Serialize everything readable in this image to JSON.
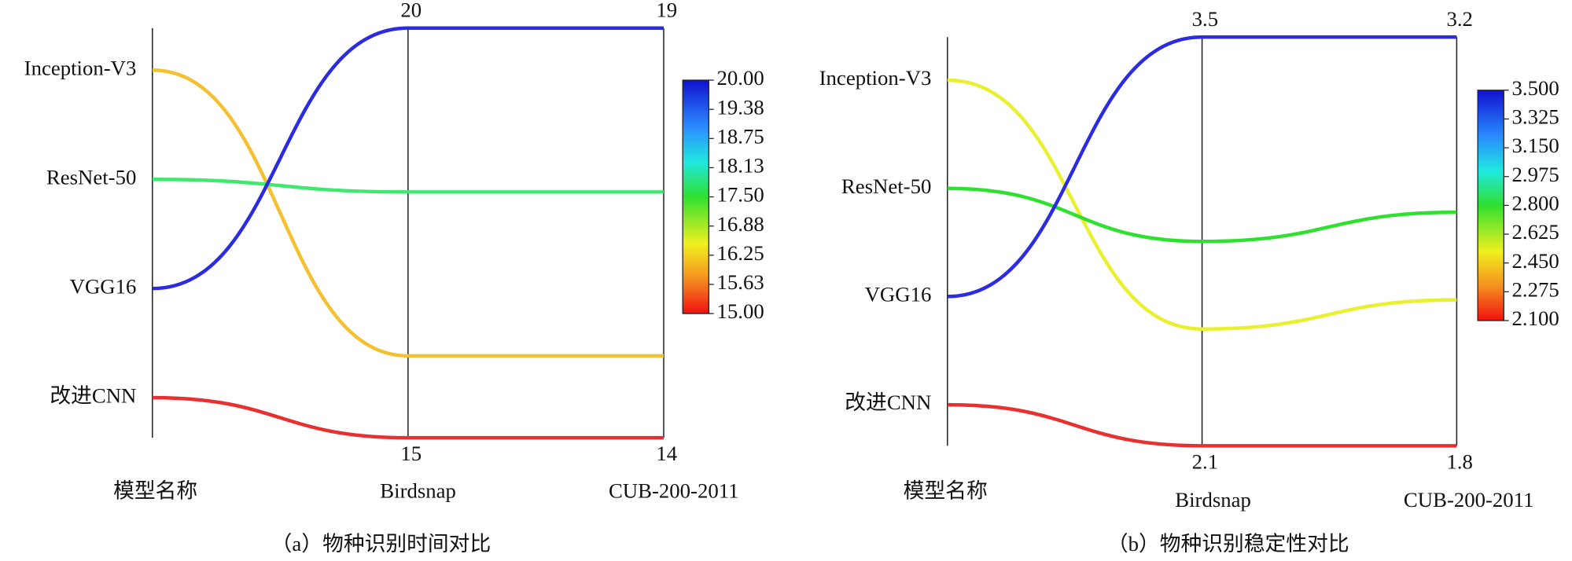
{
  "chart_data": [
    {
      "type": "parallel",
      "caption": "（a）物种识别时间对比",
      "dimensions": [
        {
          "name": "模型名称"
        },
        {
          "name": "Birdsnap",
          "lim": [
            15,
            20
          ],
          "ticks": [
            15,
            20
          ]
        },
        {
          "name": "CUB-200-2011",
          "lim": [
            14,
            19
          ],
          "ticks": [
            14,
            19
          ]
        }
      ],
      "series": [
        {
          "name": "Inception-V3",
          "color": "#f5c030",
          "values": [
            16,
            15
          ]
        },
        {
          "name": "ResNet-50",
          "color": "#40e870",
          "values": [
            18,
            17
          ]
        },
        {
          "name": "VGG16",
          "color": "#2b2be0",
          "values": [
            20,
            19
          ]
        },
        {
          "name": "改进CNN",
          "color": "#e83030",
          "values": [
            15,
            14
          ]
        }
      ],
      "colorbar": {
        "lim": [
          15,
          20
        ],
        "ticks": [
          {
            "value": 20,
            "label": "20.00"
          },
          {
            "value": 19.375,
            "label": "19.38"
          },
          {
            "value": 18.75,
            "label": "18.75"
          },
          {
            "value": 18.125,
            "label": "18.13"
          },
          {
            "value": 17.5,
            "label": "17.50"
          },
          {
            "value": 16.875,
            "label": "16.88"
          },
          {
            "value": 16.25,
            "label": "16.25"
          },
          {
            "value": 15.625,
            "label": "15.63"
          },
          {
            "value": 15,
            "label": "15.00"
          }
        ]
      }
    },
    {
      "type": "parallel",
      "caption": "（b）物种识别稳定性对比",
      "dimensions": [
        {
          "name": "模型名称"
        },
        {
          "name": "Birdsnap",
          "lim": [
            2.1,
            3.5
          ],
          "ticks": [
            2.1,
            3.5
          ]
        },
        {
          "name": "CUB-200-2011",
          "lim": [
            1.8,
            3.2
          ],
          "ticks": [
            1.8,
            3.2
          ]
        }
      ],
      "series": [
        {
          "name": "Inception-V3",
          "color": "#e8f030",
          "values": [
            2.5,
            2.3
          ]
        },
        {
          "name": "ResNet-50",
          "color": "#30e030",
          "values": [
            2.8,
            2.6
          ]
        },
        {
          "name": "VGG16",
          "color": "#2b2be0",
          "values": [
            3.5,
            3.2
          ]
        },
        {
          "name": "改进CNN",
          "color": "#e83030",
          "values": [
            2.1,
            1.8
          ]
        }
      ],
      "colorbar": {
        "lim": [
          2.1,
          3.5
        ],
        "ticks": [
          {
            "value": 3.5,
            "label": "3.500"
          },
          {
            "value": 3.325,
            "label": "3.325"
          },
          {
            "value": 3.15,
            "label": "3.150"
          },
          {
            "value": 2.975,
            "label": "2.975"
          },
          {
            "value": 2.8,
            "label": "2.800"
          },
          {
            "value": 2.625,
            "label": "2.625"
          },
          {
            "value": 2.45,
            "label": "2.450"
          },
          {
            "value": 2.275,
            "label": "2.275"
          },
          {
            "value": 2.1,
            "label": "2.100"
          }
        ]
      }
    }
  ]
}
